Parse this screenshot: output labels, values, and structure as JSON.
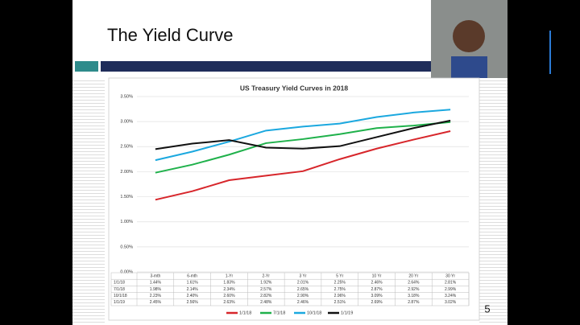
{
  "slide": {
    "title": "The Yield Curve",
    "page_number": "5"
  },
  "chart_data": {
    "type": "line",
    "title": "US Treasury Yield Curves in 2018",
    "categories": [
      "3-mth",
      "6-mth",
      "1-Yr",
      "2-Yr",
      "3 Yr",
      "5 Yr",
      "10 Yr",
      "20 Yr",
      "30 Yr"
    ],
    "series": [
      {
        "name": "1/1/18",
        "color": "#d7262b",
        "values": [
          1.44,
          1.61,
          1.83,
          1.92,
          2.01,
          2.25,
          2.46,
          2.64,
          2.81
        ],
        "value_labels": [
          "1.44%",
          "1.61%",
          "1.83%",
          "1.92%",
          "2.01%",
          "2.25%",
          "2.46%",
          "2.64%",
          "2.81%"
        ]
      },
      {
        "name": "7/1/18",
        "color": "#1fb14b",
        "values": [
          1.98,
          2.14,
          2.34,
          2.57,
          2.65,
          2.75,
          2.87,
          2.92,
          2.99
        ],
        "value_labels": [
          "1.98%",
          "2.14%",
          "2.34%",
          "2.57%",
          "2.65%",
          "2.75%",
          "2.87%",
          "2.92%",
          "2.99%"
        ]
      },
      {
        "name": "10/1/18",
        "color": "#1ba8df",
        "values": [
          2.23,
          2.4,
          2.6,
          2.82,
          2.9,
          2.96,
          3.09,
          3.18,
          3.24
        ],
        "value_labels": [
          "2.23%",
          "2.40%",
          "2.60%",
          "2.82%",
          "2.90%",
          "2.96%",
          "3.09%",
          "3.18%",
          "3.24%"
        ]
      },
      {
        "name": "1/1/19",
        "color": "#111111",
        "values": [
          2.45,
          2.56,
          2.63,
          2.48,
          2.46,
          2.51,
          2.69,
          2.87,
          3.02
        ],
        "value_labels": [
          "2.45%",
          "2.56%",
          "2.63%",
          "2.48%",
          "2.46%",
          "2.51%",
          "2.69%",
          "2.87%",
          "3.02%"
        ]
      }
    ],
    "ylim": [
      0,
      3.5
    ],
    "yticks": [
      {
        "value": 0,
        "label": "0.00%"
      },
      {
        "value": 0.5,
        "label": "0.50%"
      },
      {
        "value": 1,
        "label": "1.00%"
      },
      {
        "value": 1.5,
        "label": "1.50%"
      },
      {
        "value": 2,
        "label": "2.00%"
      },
      {
        "value": 2.5,
        "label": "2.50%"
      },
      {
        "value": 3,
        "label": "3.00%"
      },
      {
        "value": 3.5,
        "label": "3.50%"
      }
    ],
    "grid": true,
    "legend": "bottom"
  }
}
